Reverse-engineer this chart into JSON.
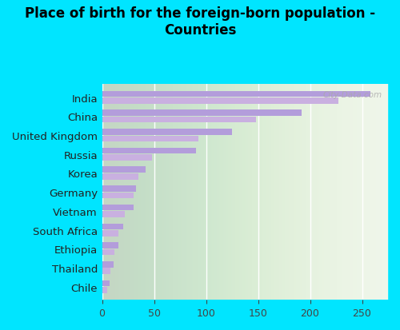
{
  "title": "Place of birth for the foreign-born population -\nCountries",
  "countries": [
    "India",
    "China",
    "United Kingdom",
    "Russia",
    "Korea",
    "Germany",
    "Vietnam",
    "South Africa",
    "Ethiopia",
    "Thailand",
    "Chile"
  ],
  "bar1_values": [
    258,
    192,
    125,
    90,
    42,
    33,
    30,
    20,
    16,
    11,
    7
  ],
  "bar2_values": [
    227,
    148,
    93,
    48,
    35,
    30,
    22,
    16,
    12,
    8,
    5
  ],
  "bar_color1": "#c9b0e0",
  "bar_color2": "#b39ddb",
  "bar_height": 0.32,
  "xlim": [
    0,
    275
  ],
  "xticks": [
    0,
    50,
    100,
    150,
    200,
    250
  ],
  "background_color": "#00e5ff",
  "plot_bg_color": "#eef5e8",
  "title_fontsize": 12,
  "label_fontsize": 9.5,
  "tick_fontsize": 9,
  "watermark": "City-Data.com"
}
